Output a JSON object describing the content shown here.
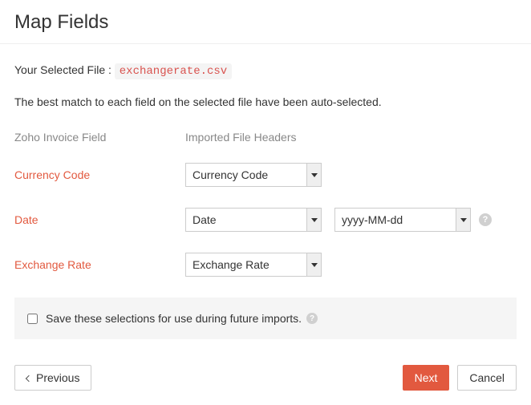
{
  "page": {
    "title": "Map Fields",
    "selectedFileLabel": "Your Selected File :",
    "selectedFileName": "exchangerate.csv",
    "hint": "The best match to each field on the selected file have been auto-selected."
  },
  "columns": {
    "left": "Zoho Invoice Field",
    "right": "Imported File Headers"
  },
  "fields": {
    "currencyCode": {
      "label": "Currency Code",
      "selected": "Currency Code"
    },
    "date": {
      "label": "Date",
      "selected": "Date",
      "format": "yyyy-MM-dd"
    },
    "exchangeRate": {
      "label": "Exchange Rate",
      "selected": "Exchange Rate"
    }
  },
  "saveBar": {
    "label": "Save these selections for use during future imports.",
    "checked": false
  },
  "actions": {
    "previous": "Previous",
    "next": "Next",
    "cancel": "Cancel"
  },
  "style": {
    "accent": "#e2593f",
    "labelColor": "#e2593f",
    "mutedText": "#888888",
    "bg": "#ffffff",
    "panelBg": "#f5f5f5",
    "border": "#cccccc",
    "fileChipBg": "#f4f4f4",
    "fileChipText": "#d9534f"
  }
}
